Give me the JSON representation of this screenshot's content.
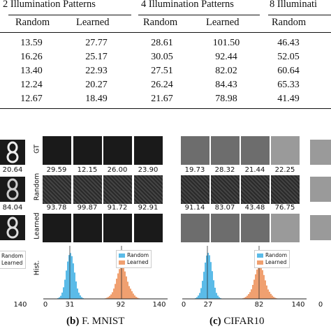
{
  "table": {
    "group_headers": [
      "2 Illumination Patterns",
      "4 Illumination Patterns",
      "8 Illuminati"
    ],
    "columns": [
      "Random",
      "Learned",
      "Random",
      "Learned",
      "Random"
    ],
    "rows": [
      [
        "13.59",
        "27.77",
        "28.61",
        "101.50",
        "46.43"
      ],
      [
        "16.26",
        "25.17",
        "30.05",
        "92.44",
        "52.05"
      ],
      [
        "13.40",
        "22.93",
        "27.51",
        "82.02",
        "60.64"
      ],
      [
        "12.24",
        "20.27",
        "26.24",
        "84.43",
        "65.33"
      ],
      [
        "12.67",
        "18.49",
        "21.67",
        "78.98",
        "41.49"
      ]
    ]
  },
  "row_labels": {
    "gt": "GT",
    "random": "Random",
    "learned": "Learned",
    "hist": "Hist."
  },
  "panel_a": {
    "gt_value": "20.64",
    "random_value": "84.04",
    "legend": [
      "Random",
      "Learned"
    ],
    "x_ticks": [
      "140"
    ]
  },
  "panel_b": {
    "caption_letter": "(b)",
    "caption_text": "F. MNIST",
    "gt_values": [
      "29.59",
      "12.15",
      "26.00",
      "23.90"
    ],
    "random_values": [
      "93.78",
      "99.87",
      "91.72",
      "92.91"
    ],
    "legend": [
      "Random",
      "Learned"
    ],
    "x_ticks": [
      "0",
      "31",
      "92",
      "140"
    ],
    "colors": {
      "random": "#5bbbe8",
      "learned": "#f0a070"
    }
  },
  "panel_c": {
    "caption_letter": "(c)",
    "caption_text": "CIFAR10",
    "gt_values": [
      "19.73",
      "28.32",
      "21.44",
      "22.25"
    ],
    "random_values": [
      "91.14",
      "83.07",
      "43.48",
      "76.75"
    ],
    "legend": [
      "Random",
      "Learned"
    ],
    "x_ticks": [
      "0",
      "27",
      "82",
      "140"
    ]
  },
  "panel_d": {
    "x_ticks": [
      "0"
    ]
  }
}
